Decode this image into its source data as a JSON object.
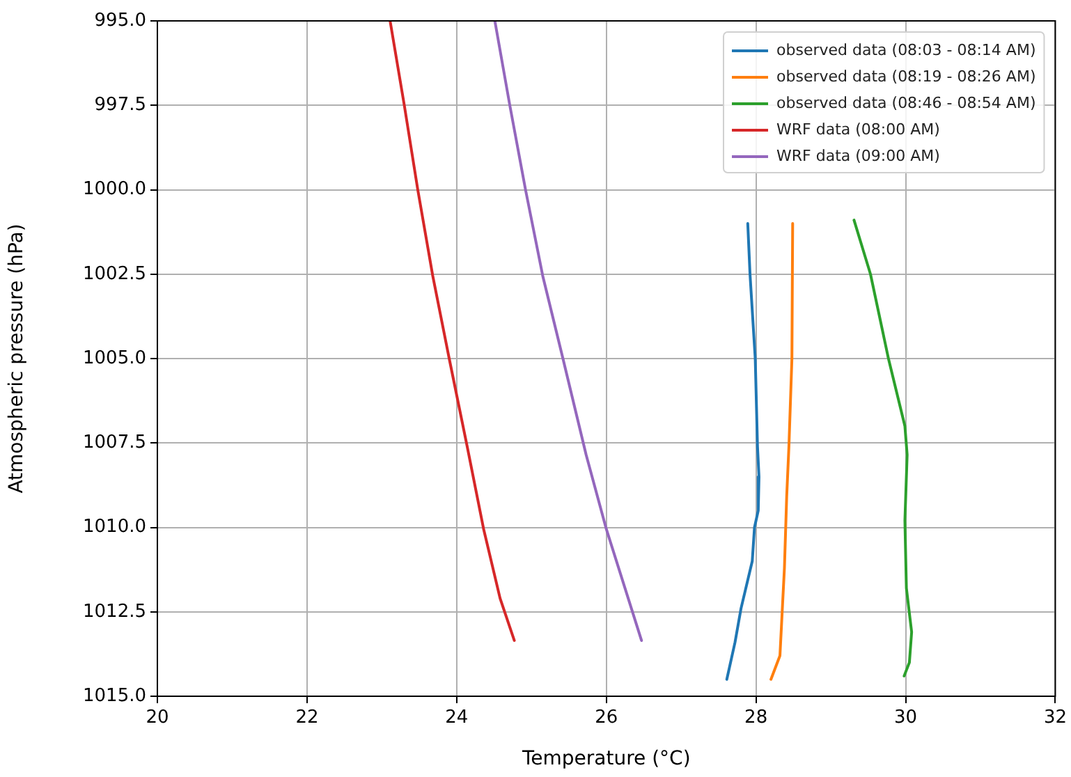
{
  "chart_data": {
    "type": "line",
    "xlabel": "Temperature (°C)",
    "ylabel": "Atmospheric pressure (hPa)",
    "xlim": [
      20,
      32
    ],
    "xticks": [
      20,
      22,
      24,
      26,
      28,
      30,
      32
    ],
    "ylim": [
      1015,
      995
    ],
    "yticks": [
      {
        "value": 995,
        "label": "995.0"
      },
      {
        "value": 997.5,
        "label": "997.5"
      },
      {
        "value": 1000,
        "label": "1000.0"
      },
      {
        "value": 1002.5,
        "label": "1002.5"
      },
      {
        "value": 1005,
        "label": "1005.0"
      },
      {
        "value": 1007.5,
        "label": "1007.5"
      },
      {
        "value": 1010,
        "label": "1010.0"
      },
      {
        "value": 1012.5,
        "label": "1012.5"
      },
      {
        "value": 1015,
        "label": "1015.0"
      }
    ],
    "grid": true,
    "legend": "top right",
    "marker": "none",
    "line_style": "solid",
    "series": [
      {
        "name": "observed data (08:03 - 08:14 AM)",
        "color": "#1f77b4",
        "x": [
          27.89,
          27.92,
          27.99,
          28.02,
          28.04,
          28.03,
          27.98,
          27.95,
          27.8,
          27.72,
          27.61
        ],
        "values": [
          1001.0,
          1002.5,
          1005.0,
          1007.6,
          1008.5,
          1009.5,
          1010.0,
          1011.0,
          1012.4,
          1013.4,
          1014.5
        ]
      },
      {
        "name": "observed data (08:19 - 08:26 AM)",
        "color": "#ff7f0e",
        "x": [
          28.49,
          28.48,
          28.44,
          28.41,
          28.38,
          28.35,
          28.32,
          28.2
        ],
        "values": [
          1001.0,
          1005.0,
          1007.6,
          1009.1,
          1011.2,
          1012.5,
          1013.8,
          1014.5
        ]
      },
      {
        "name": "observed data (08:46 - 08:54 AM)",
        "color": "#2ca02c",
        "x": [
          29.31,
          29.53,
          29.77,
          29.99,
          30.02,
          29.99,
          30.01,
          30.08,
          30.05,
          29.98
        ],
        "values": [
          1000.9,
          1002.5,
          1005.0,
          1007.0,
          1007.85,
          1009.8,
          1011.8,
          1013.1,
          1014.0,
          1014.4
        ]
      },
      {
        "name": "WRF data (08:00 AM)",
        "color": "#d62728",
        "x": [
          23.11,
          23.3,
          23.48,
          23.68,
          23.9,
          24.14,
          24.36,
          24.58,
          24.77
        ],
        "values": [
          995.0,
          997.5,
          1000.0,
          1002.55,
          1005.0,
          1007.6,
          1010.05,
          1012.1,
          1013.35
        ]
      },
      {
        "name": "WRF data (09:00 AM)",
        "color": "#9467bd",
        "x": [
          24.51,
          24.71,
          24.92,
          25.15,
          25.42,
          25.73,
          26.0,
          26.47
        ],
        "values": [
          995.0,
          997.5,
          1000.0,
          1002.55,
          1005.0,
          1007.85,
          1010.05,
          1013.35
        ]
      }
    ]
  }
}
